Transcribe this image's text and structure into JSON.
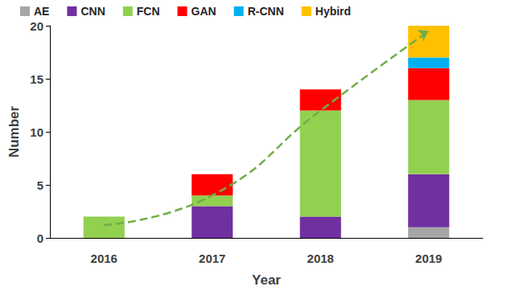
{
  "chart_data": {
    "type": "bar",
    "stacked": true,
    "x_label": "Year",
    "y_label": "Number",
    "categories": [
      "2016",
      "2017",
      "2018",
      "2019"
    ],
    "ylim": [
      0,
      20
    ],
    "yticks": [
      0,
      5,
      10,
      15,
      20
    ],
    "grid": false,
    "legend": "top",
    "series": [
      {
        "name": "AE",
        "color": "#a6a6a6",
        "values": [
          0,
          0,
          0,
          1
        ]
      },
      {
        "name": "CNN",
        "color": "#7030a0",
        "values": [
          0,
          3,
          2,
          5
        ]
      },
      {
        "name": "FCN",
        "color": "#92d050",
        "values": [
          2,
          1,
          10,
          7
        ]
      },
      {
        "name": "GAN",
        "color": "#ff0000",
        "values": [
          0,
          2,
          2,
          3
        ]
      },
      {
        "name": "R-CNN",
        "color": "#00b0f0",
        "values": [
          0,
          0,
          0,
          1
        ]
      },
      {
        "name": "Hybird",
        "color": "#ffc000",
        "values": [
          0,
          0,
          0,
          3
        ]
      },
      {
        "type": "line",
        "color": "#70ad47",
        "line_style": "dashed",
        "values": [
          1.2,
          4,
          12,
          19.5
        ]
      }
    ]
  }
}
